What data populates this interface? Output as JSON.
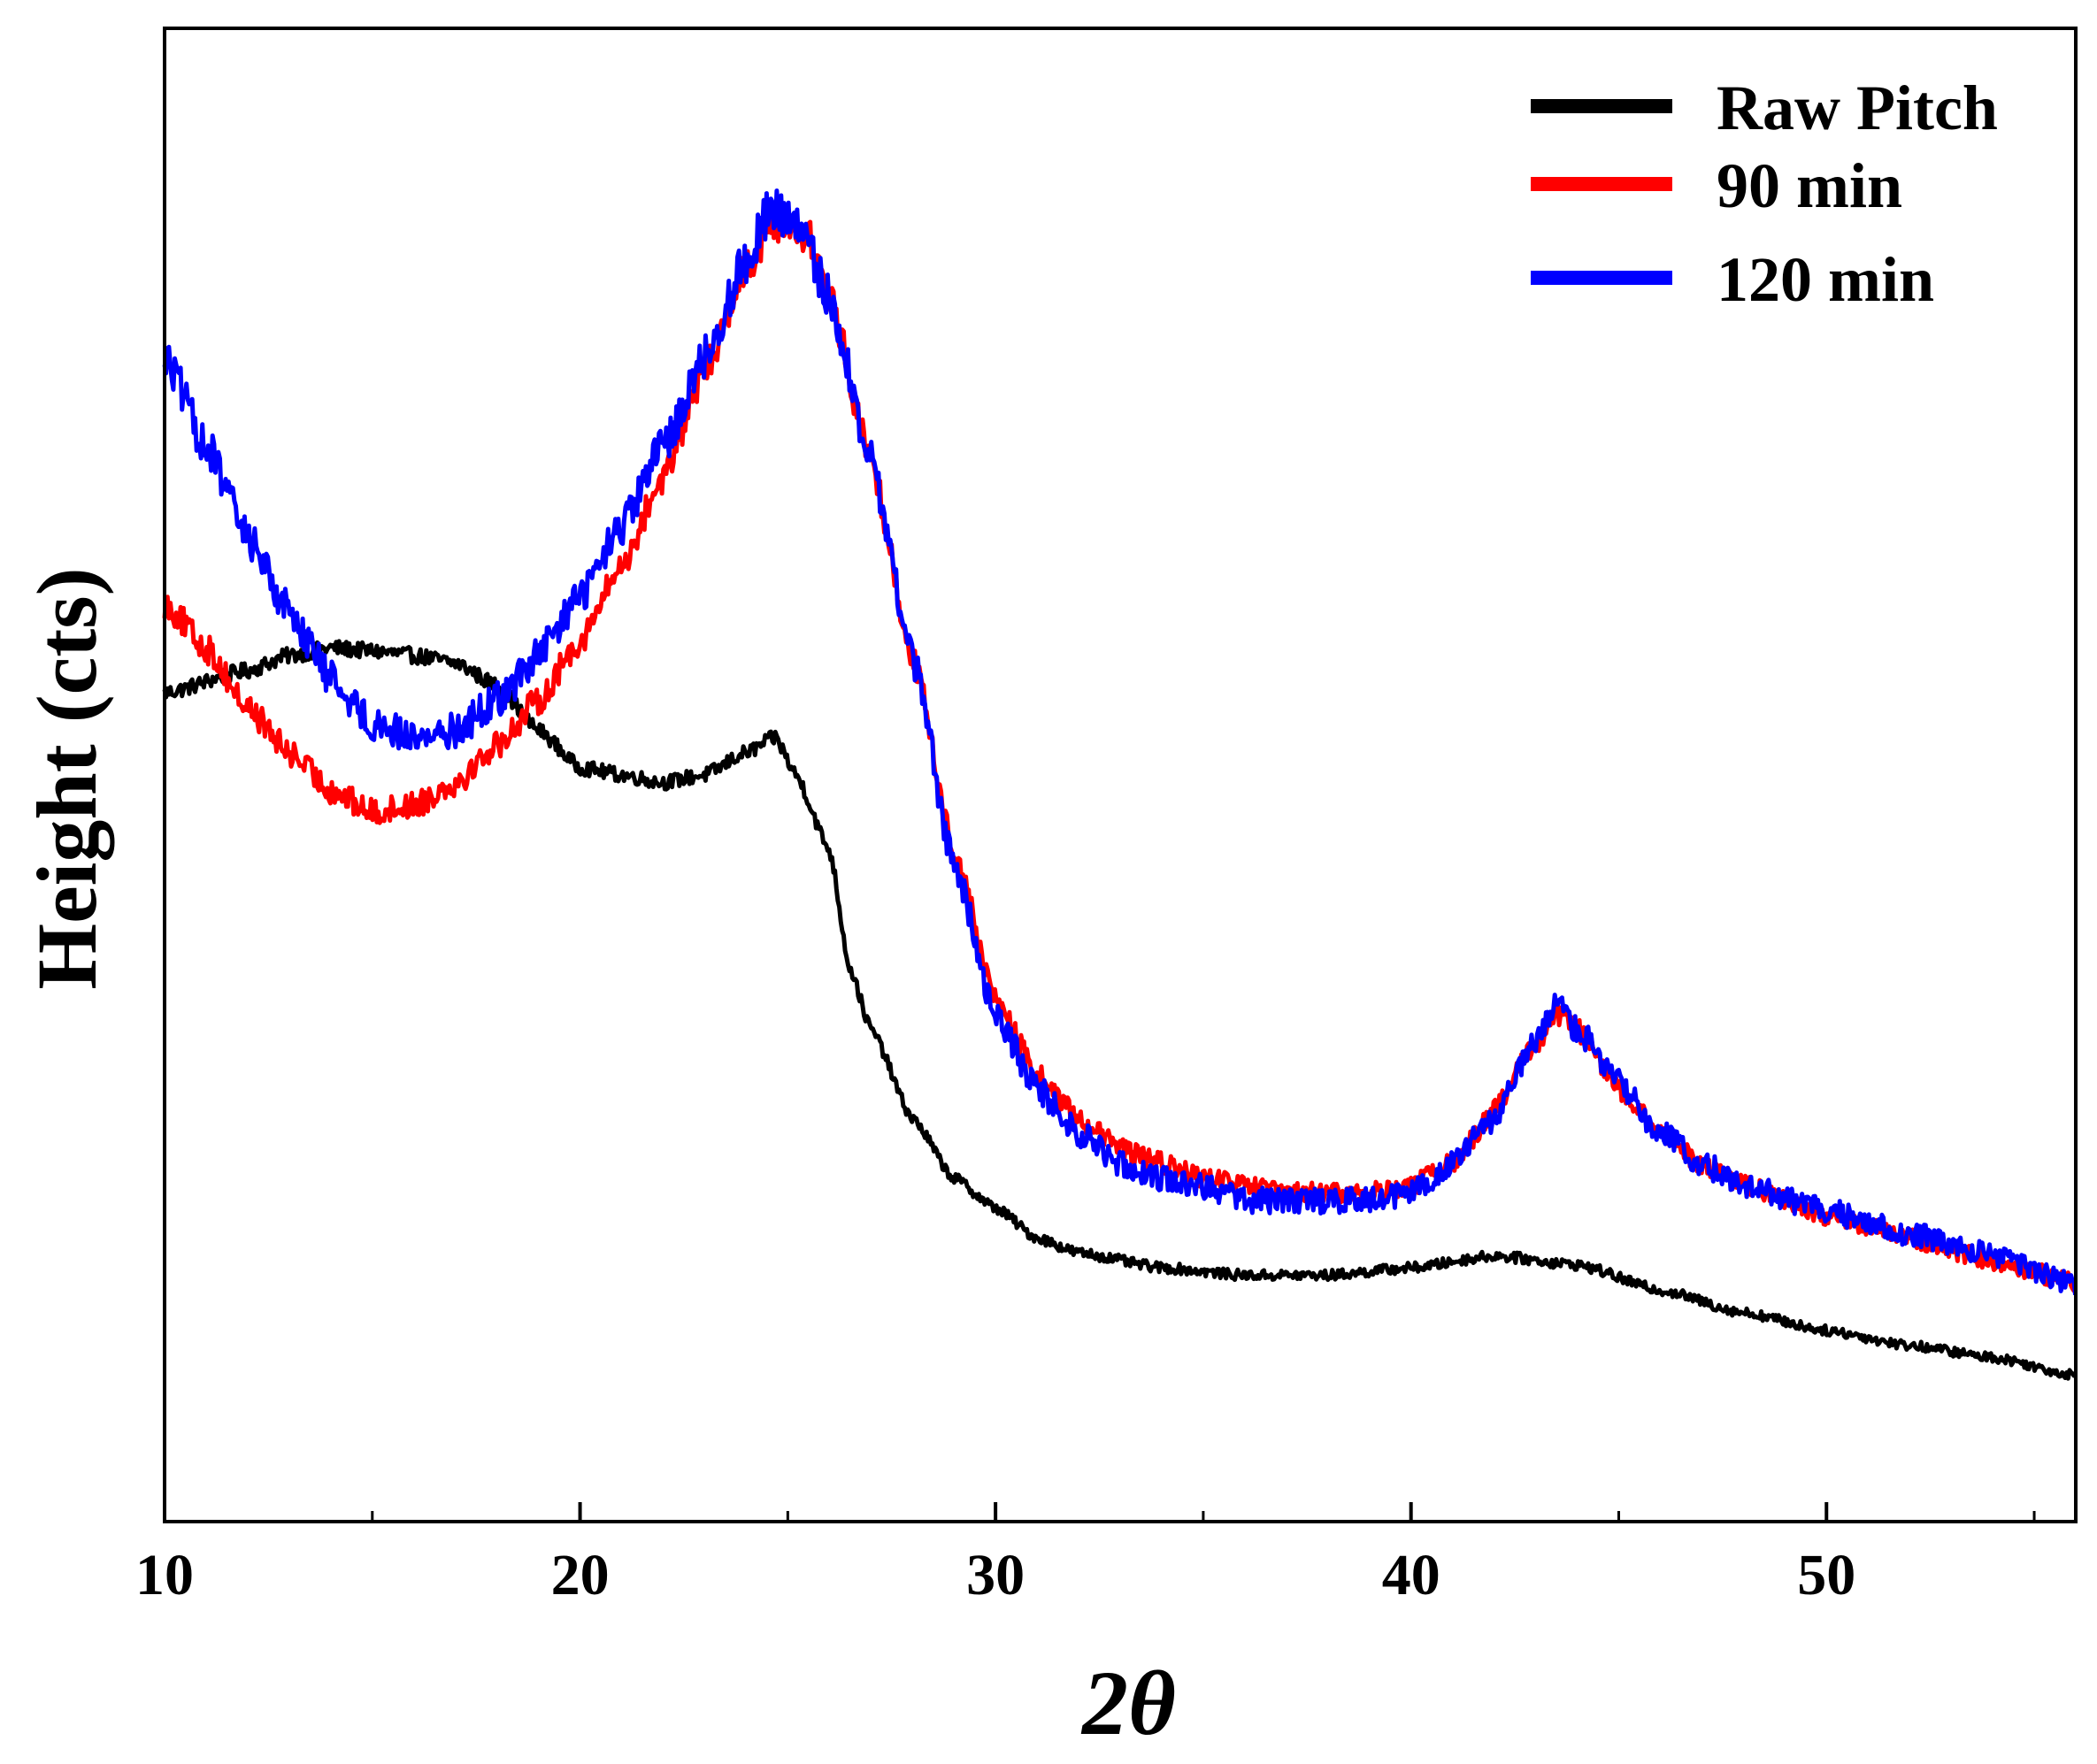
{
  "chart_data": {
    "type": "line",
    "title": "",
    "xlabel": "2θ",
    "ylabel": "Height (cts)",
    "xlim": [
      10,
      56
    ],
    "ylim": [
      0,
      100
    ],
    "xticks": [
      10,
      20,
      30,
      40,
      50
    ],
    "xtick_labels": [
      "10",
      "20",
      "30",
      "40",
      "50"
    ],
    "yticks_shown": false,
    "grid": false,
    "legend_position": "top-right",
    "series": [
      {
        "name": "Raw Pitch",
        "color": "#000000",
        "x": [
          10,
          12,
          13,
          14,
          15,
          16,
          17,
          18,
          19,
          20,
          21,
          22,
          23,
          24,
          24.7,
          25.2,
          26,
          26.5,
          27,
          28,
          29,
          30,
          31,
          32,
          34,
          36,
          38,
          40,
          42,
          44,
          46,
          48,
          50,
          52,
          54,
          56
        ],
        "y": [
          55.5,
          57,
          58,
          58.5,
          58.3,
          58,
          57.5,
          56,
          53,
          50.5,
          50,
          49.5,
          50,
          51.5,
          52.5,
          50,
          45,
          37,
          33,
          27,
          23,
          21,
          19,
          18,
          17,
          16.5,
          16.5,
          17,
          17.8,
          17.2,
          15.5,
          14,
          12.8,
          11.8,
          11,
          9.8
        ]
      },
      {
        "name": "90 min",
        "color": "#ff0000",
        "x": [
          10,
          11,
          12,
          13,
          14,
          15,
          16,
          17,
          18,
          19,
          20,
          21,
          22,
          23,
          24,
          24.7,
          25.5,
          26,
          27,
          28,
          29,
          30,
          31,
          32,
          33,
          34,
          35,
          36,
          37,
          38,
          39,
          40,
          41,
          42,
          43,
          43.5,
          44,
          45,
          46,
          47,
          48,
          50,
          52,
          54,
          56
        ],
        "y": [
          61.5,
          58.5,
          54.5,
          51.5,
          49,
          47.5,
          48,
          49.5,
          52,
          55,
          59,
          64,
          70,
          77,
          84,
          87,
          86,
          82,
          71,
          58,
          45,
          35,
          30,
          27,
          25,
          24,
          23,
          22.5,
          22,
          22,
          22,
          22.5,
          24,
          27.5,
          32,
          34,
          33,
          29,
          26,
          24,
          22.5,
          20.5,
          19,
          17.5,
          16
        ]
      },
      {
        "name": "120 min",
        "color": "#0000ff",
        "x": [
          10,
          11,
          12,
          13,
          14,
          15,
          16,
          17,
          18,
          19,
          20,
          21,
          22,
          23,
          24,
          24.6,
          25.3,
          26,
          27,
          28,
          29,
          30,
          31,
          32,
          33,
          34,
          35,
          36,
          37,
          38,
          39,
          40,
          41,
          42,
          43,
          43.5,
          44,
          45,
          46,
          47,
          48,
          50,
          52,
          54,
          56
        ],
        "y": [
          78,
          72,
          66,
          61,
          56.5,
          53.5,
          52.5,
          53,
          55,
          58,
          62,
          66.5,
          72,
          78,
          84.5,
          88,
          86.5,
          82,
          71,
          58,
          44,
          34,
          29,
          26,
          24,
          23,
          22.5,
          21.5,
          21.5,
          21.5,
          21.5,
          22,
          24,
          27,
          32,
          34.5,
          33,
          29.5,
          26,
          24,
          22.5,
          20.8,
          19.3,
          17.8,
          15.8
        ]
      }
    ]
  }
}
